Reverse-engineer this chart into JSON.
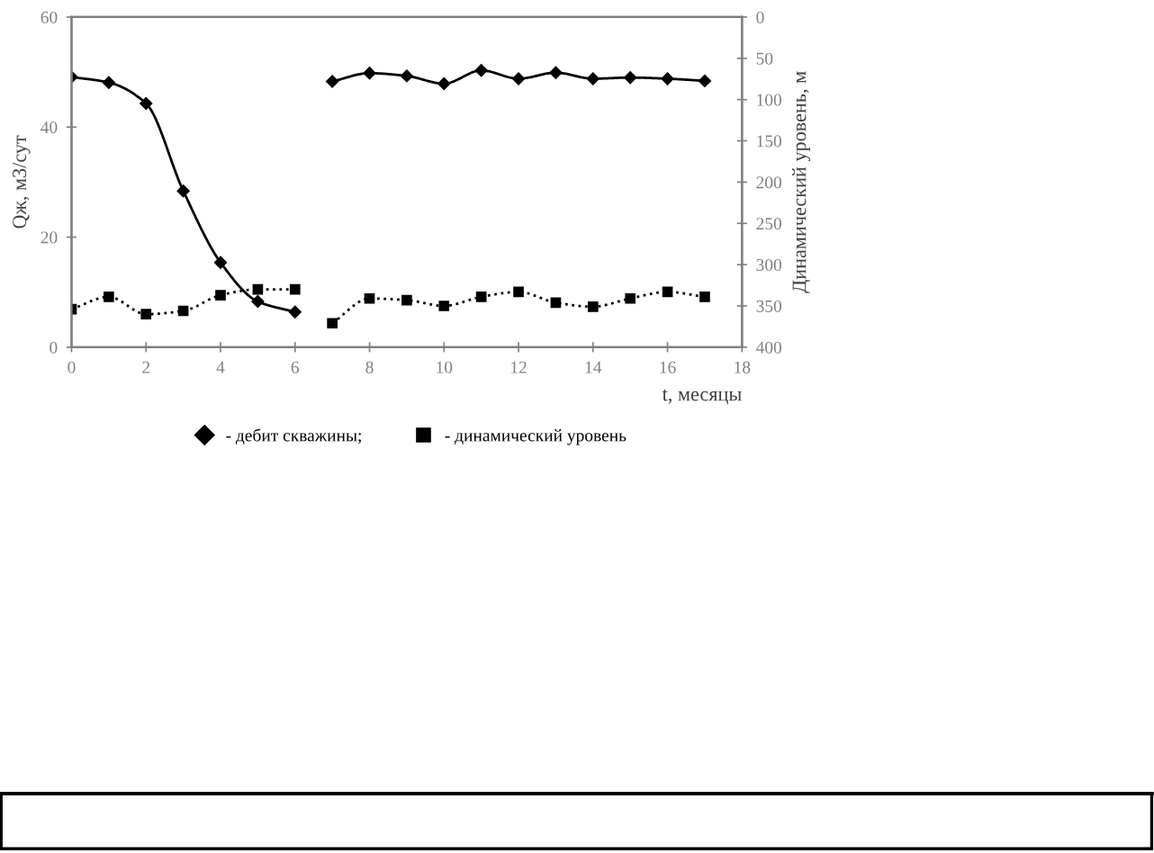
{
  "chart_data": {
    "type": "line",
    "xlabel": "t, месяцы",
    "ylabel": "Qж, м3/сут",
    "y2label": "Динамический уровень, м",
    "x": [
      0,
      1,
      2,
      3,
      4,
      5,
      6,
      6.5,
      7,
      8,
      9,
      10,
      11,
      12,
      13,
      14,
      15,
      16,
      17
    ],
    "series": [
      {
        "name": "- дебит скважины;",
        "color": "#000000",
        "marker": "diamond",
        "line_style": "solid",
        "values": [
          49.1,
          48.1,
          44.3,
          28.4,
          15.4,
          8.3,
          6.4,
          null,
          48.3,
          49.8,
          49.3,
          47.9,
          50.3,
          48.8,
          49.9,
          48.8,
          49.0,
          48.8,
          48.4
        ]
      },
      {
        "name": "- динамический уровень",
        "color": "#000000",
        "marker": "square",
        "line_style": "dotted",
        "axis": "y2",
        "values": [
          354,
          339,
          360,
          356,
          337,
          330,
          330,
          null,
          371,
          341,
          343,
          350,
          339,
          333,
          346,
          351,
          341,
          333,
          339
        ]
      }
    ],
    "xlim": [
      0,
      18
    ],
    "xticks": [
      0,
      2,
      4,
      6,
      8,
      10,
      12,
      14,
      16,
      18
    ],
    "ylim": [
      0,
      60
    ],
    "yticks": [
      0,
      20,
      40,
      60
    ],
    "y2lim": [
      400,
      0
    ],
    "y2ticks": [
      400,
      350,
      300,
      250,
      200,
      150,
      100,
      50,
      0
    ],
    "grid": false,
    "legend": "bottom"
  }
}
